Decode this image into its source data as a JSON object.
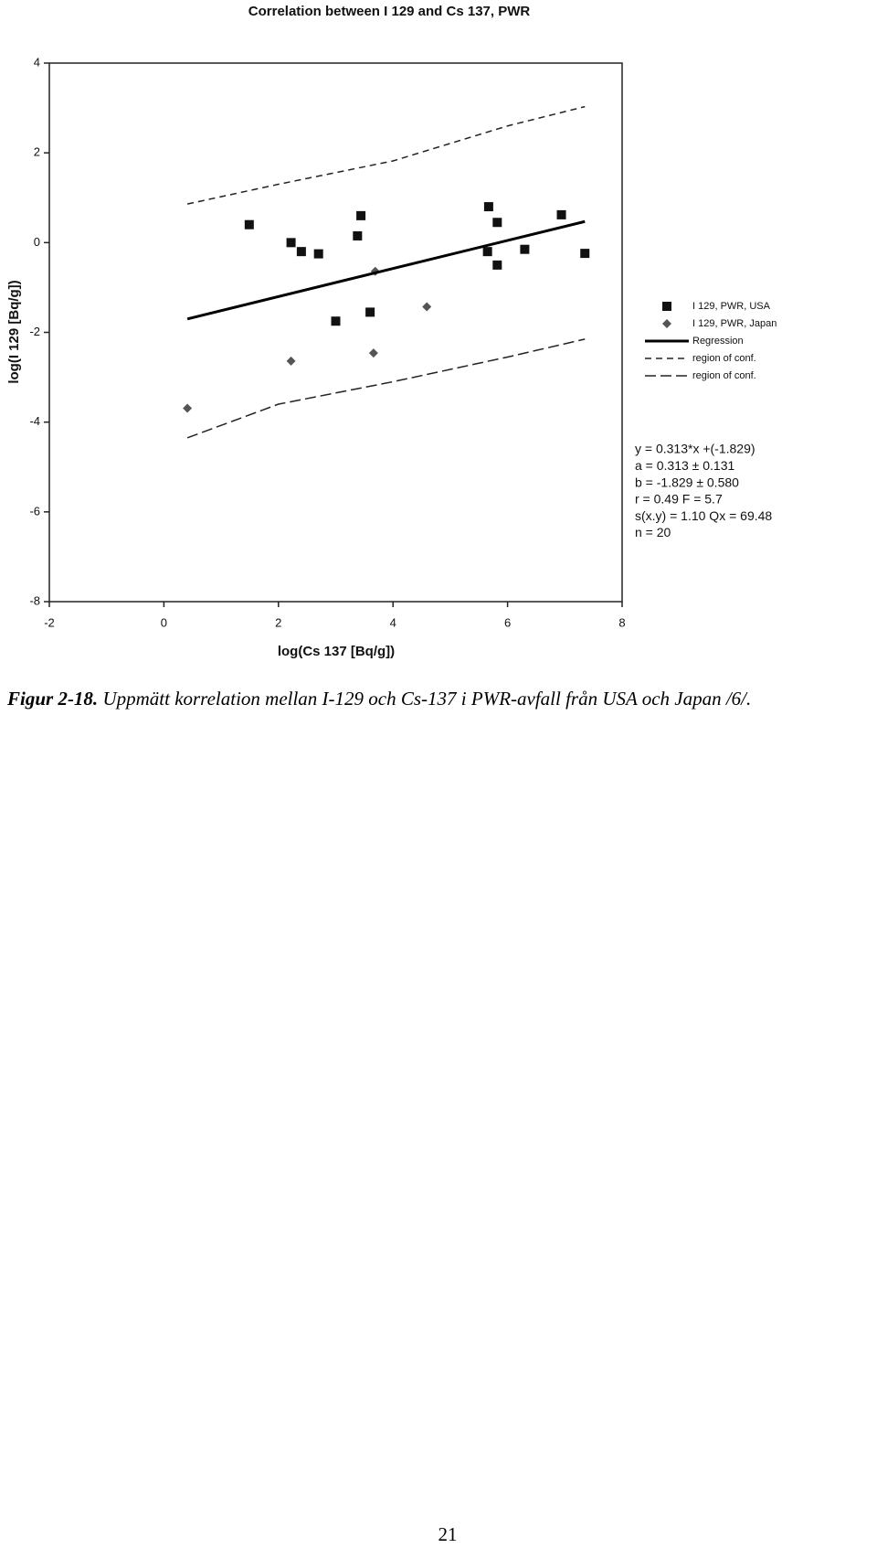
{
  "chart_data": {
    "type": "scatter",
    "title": "Correlation between I 129 and Cs 137, PWR",
    "x_label": "log(Cs 137 [Bq/g])",
    "y_label": "log(I 129 [Bq/g])",
    "xlim": [
      -2,
      8
    ],
    "xticks": [
      -2,
      0,
      2,
      4,
      6,
      8
    ],
    "ylim": [
      -8,
      4
    ],
    "yticks": [
      -8,
      -6,
      -4,
      -2,
      0,
      2,
      4
    ],
    "series": [
      {
        "name": "I 129, PWR, USA",
        "color": "#111111",
        "marker": "square",
        "x": [
          1.49,
          2.22,
          2.4,
          2.7,
          3.0,
          3.38,
          3.44,
          3.6,
          5.67,
          5.65,
          5.82,
          5.82,
          6.3,
          6.94,
          7.35
        ],
        "values": [
          0.4,
          0.0,
          -0.2,
          -0.25,
          -1.75,
          0.15,
          0.6,
          -1.55,
          0.8,
          -0.2,
          0.45,
          -0.5,
          -0.15,
          0.62,
          -0.24
        ]
      },
      {
        "name": "I 129, PWR, Japan",
        "color": "#555555",
        "marker": "diamond",
        "x": [
          0.41,
          2.22,
          3.66,
          3.69,
          4.59
        ],
        "values": [
          -3.69,
          -2.64,
          -2.46,
          -0.64,
          -1.43
        ]
      },
      {
        "name": "Regression",
        "color": "#000000",
        "marker": "line",
        "width": 3,
        "x": [
          0.41,
          7.35
        ],
        "values": [
          -1.7,
          0.47
        ]
      },
      {
        "name": "region of conf.",
        "color": "#222222",
        "marker": "line",
        "dash": "7,5",
        "width": 1.5,
        "x": [
          0.41,
          2,
          4,
          6,
          7.35
        ],
        "values": [
          0.86,
          1.3,
          1.82,
          2.6,
          3.03
        ]
      },
      {
        "name": "region of conf.",
        "color": "#222222",
        "marker": "line",
        "dash": "12,5",
        "width": 1.5,
        "x": [
          0.41,
          2,
          4,
          6,
          7.35
        ],
        "values": [
          -4.35,
          -3.6,
          -3.1,
          -2.55,
          -2.15
        ]
      }
    ],
    "annotations": [
      "y = 0.313*x +(-1.829)",
      "a = 0.313 ± 0.131",
      "b = -1.829 ± 0.580",
      "r = 0.49  F = 5.7",
      "s(x.y) = 1.10  Qx = 69.48",
      "n = 20"
    ]
  },
  "caption": {
    "label": "Figur 2-18.",
    "text": "Uppmätt korrelation mellan I-129 och Cs-137 i PWR-avfall från USA och Japan /6/."
  },
  "page_number": "21"
}
